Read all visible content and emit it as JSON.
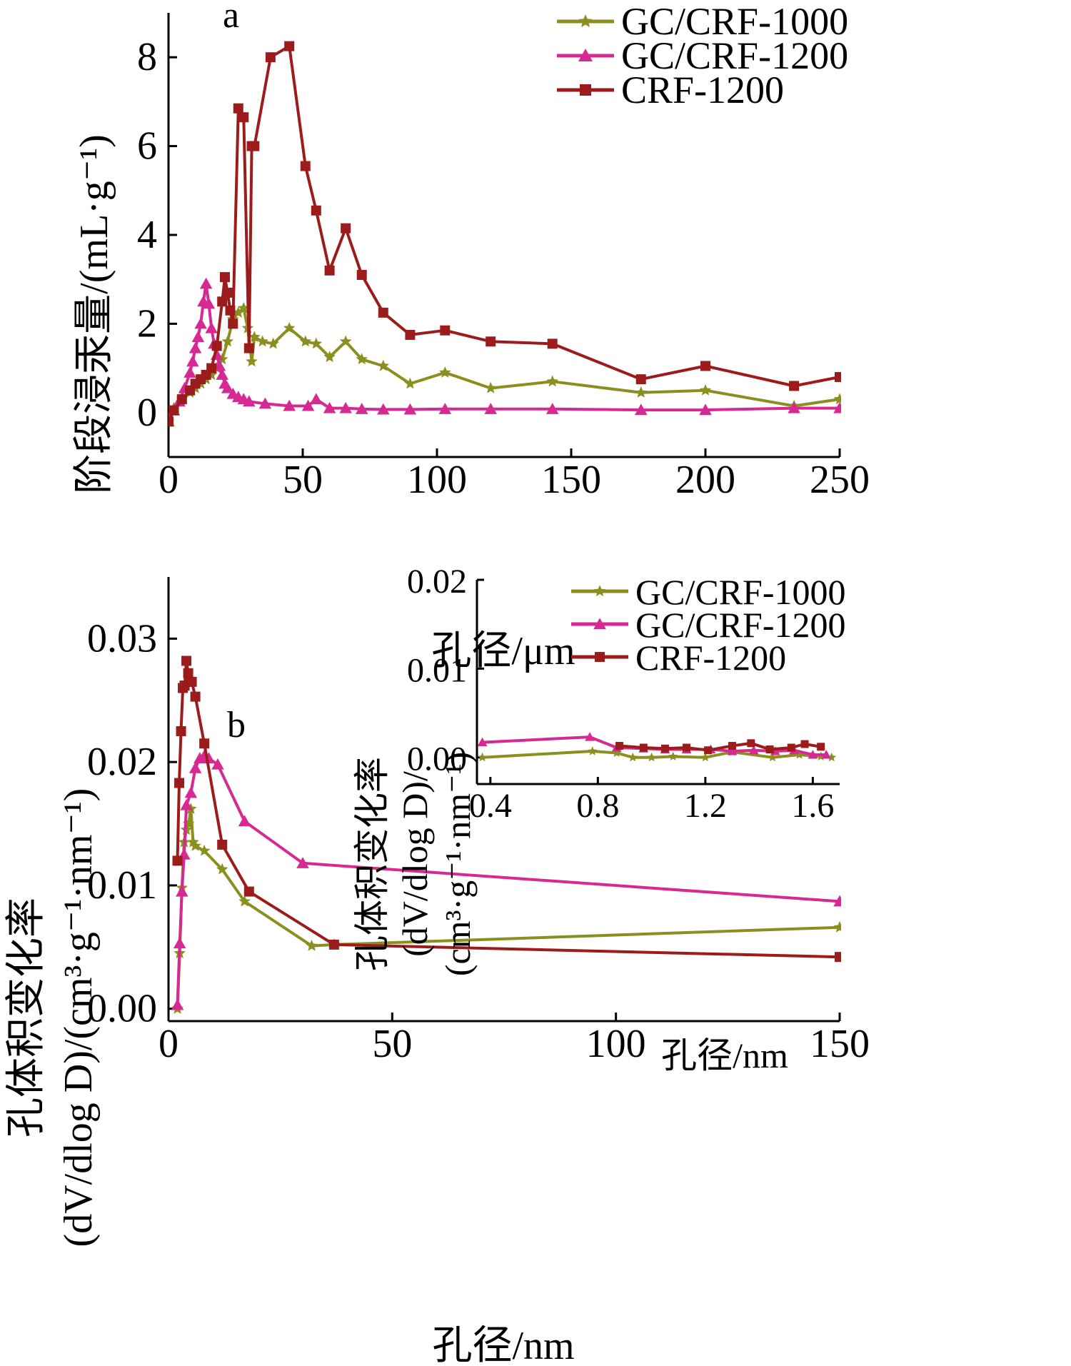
{
  "colors": {
    "GC/CRF-1000": "#8a8f1e",
    "GC/CRF-1200": "#d62a92",
    "CRF-1200": "#9c1c1c",
    "axis": "#000000"
  },
  "chart_data": [
    {
      "type": "line",
      "panel": "a",
      "xlabel": "孔径/μm",
      "ylabel": "阶段浸汞量/(mL·g⁻¹)",
      "xlim": [
        0,
        250
      ],
      "ylim": [
        -1,
        9
      ],
      "xticks": [
        "0",
        "50",
        "100",
        "150",
        "200",
        "250"
      ],
      "yticks": [
        "0",
        "2",
        "4",
        "6",
        "8"
      ],
      "legend_position": "top-right",
      "series": [
        {
          "name": "GC/CRF-1000",
          "marker": "star",
          "x": [
            0,
            2,
            5,
            8,
            10,
            12,
            14,
            16,
            18,
            20,
            22,
            24,
            26,
            28,
            29.5,
            31,
            32,
            35,
            39,
            45,
            51,
            55,
            60,
            66,
            72,
            80,
            90,
            103,
            120,
            143,
            176,
            200,
            233,
            250
          ],
          "y": [
            -0.2,
            0.1,
            0.3,
            0.45,
            0.55,
            0.65,
            0.75,
            0.85,
            1.0,
            1.2,
            1.6,
            2.1,
            2.25,
            2.35,
            1.9,
            1.15,
            1.7,
            1.6,
            1.55,
            1.9,
            1.6,
            1.55,
            1.25,
            1.6,
            1.2,
            1.05,
            0.65,
            0.9,
            0.55,
            0.7,
            0.45,
            0.5,
            0.15,
            0.3
          ]
        },
        {
          "name": "GC/CRF-1200",
          "marker": "triangle",
          "x": [
            0,
            2,
            4,
            6,
            8,
            9,
            10,
            11,
            12,
            13,
            14,
            15,
            16,
            17,
            18,
            19,
            20,
            21,
            22,
            24,
            26,
            28,
            30,
            36,
            45,
            52,
            55,
            60,
            66,
            72,
            80,
            90,
            103,
            120,
            143,
            176,
            200,
            233,
            250
          ],
          "y": [
            -0.2,
            0.05,
            0.25,
            0.55,
            0.9,
            1.15,
            1.45,
            1.7,
            2.0,
            2.5,
            2.9,
            2.45,
            1.9,
            1.55,
            1.3,
            1.05,
            0.85,
            0.65,
            0.55,
            0.42,
            0.35,
            0.3,
            0.25,
            0.2,
            0.15,
            0.15,
            0.3,
            0.1,
            0.1,
            0.08,
            0.07,
            0.07,
            0.08,
            0.08,
            0.08,
            0.06,
            0.06,
            0.1,
            0.1
          ]
        },
        {
          "name": "CRF-1200",
          "marker": "square",
          "x": [
            0,
            2,
            5,
            8,
            10,
            12,
            14,
            16,
            18,
            20,
            21,
            22,
            23,
            24,
            26,
            28,
            30,
            31,
            32,
            38,
            45,
            51,
            55,
            60,
            66,
            72,
            80,
            90,
            103,
            120,
            143,
            176,
            200,
            233,
            250
          ],
          "y": [
            -0.2,
            0.05,
            0.3,
            0.5,
            0.65,
            0.75,
            0.85,
            1.0,
            1.5,
            2.5,
            3.05,
            2.7,
            2.3,
            2.0,
            6.85,
            6.65,
            1.45,
            6.0,
            6.0,
            8.0,
            8.25,
            5.55,
            4.55,
            3.2,
            4.15,
            3.1,
            2.25,
            1.75,
            1.85,
            1.6,
            1.55,
            0.75,
            1.05,
            0.6,
            0.8
          ]
        }
      ]
    },
    {
      "type": "line",
      "panel": "b",
      "xlabel": "孔径/nm",
      "ylabel": [
        "孔体积变化率",
        "(dV/dlog D)/(cm³·g⁻¹·nm⁻¹)"
      ],
      "xlim": [
        0,
        150
      ],
      "ylim": [
        -0.001,
        0.035
      ],
      "xticks": [
        "0",
        "50",
        "100",
        "150"
      ],
      "yticks": [
        "0.00",
        "0.01",
        "0.02",
        "0.03"
      ],
      "legend_position": "top-right (within inset)",
      "series": [
        {
          "name": "GC/CRF-1000",
          "marker": "star",
          "x": [
            2,
            2.5,
            3,
            3.5,
            4,
            4.5,
            5,
            5.5,
            6,
            8,
            12,
            17,
            32,
            37,
            150
          ],
          "y": [
            0.0,
            0.0045,
            0.0098,
            0.0135,
            0.0145,
            0.015,
            0.0162,
            0.0135,
            0.0132,
            0.0128,
            0.0113,
            0.0087,
            0.0051,
            0.0052,
            0.0066
          ]
        },
        {
          "name": "GC/CRF-1200",
          "marker": "triangle",
          "x": [
            2,
            2.5,
            3,
            3.5,
            4,
            5,
            6,
            7,
            8,
            9,
            11,
            17,
            30,
            150
          ],
          "y": [
            0.0003,
            0.0053,
            0.0095,
            0.0125,
            0.0165,
            0.0175,
            0.0195,
            0.0203,
            0.0205,
            0.0203,
            0.0198,
            0.0152,
            0.0118,
            0.0087
          ]
        },
        {
          "name": "CRF-1200",
          "marker": "square",
          "x": [
            2,
            2.4,
            2.8,
            3.2,
            3.6,
            4,
            4.4,
            4.8,
            5.2,
            6,
            8,
            12,
            18,
            37,
            150
          ],
          "y": [
            0.012,
            0.0183,
            0.0225,
            0.026,
            0.0262,
            0.0282,
            0.0272,
            0.0265,
            0.0265,
            0.0253,
            0.0215,
            0.0133,
            0.0095,
            0.0052,
            0.0042
          ]
        }
      ],
      "inset": {
        "xlabel": "孔径/nm",
        "ylabel": [
          "孔体积变化率",
          "(dV/dlog D)/",
          "(cm³·g⁻¹·nm⁻¹)"
        ],
        "xlim": [
          0.35,
          1.7
        ],
        "ylim": [
          -0.003,
          0.02
        ],
        "xticks": [
          "0.4",
          "0.8",
          "1.2",
          "1.6"
        ],
        "yticks": [
          "0.00",
          "0.01",
          "0.02"
        ],
        "series": [
          {
            "name": "GC/CRF-1000",
            "marker": "star",
            "x": [
              0.37,
              0.78,
              0.87,
              0.93,
              1.0,
              1.08,
              1.2,
              1.3,
              1.45,
              1.55,
              1.63,
              1.67
            ],
            "y": [
              0.0,
              0.0007,
              0.0005,
              0.0,
              0.0,
              0.0001,
              0.0,
              0.0006,
              0.0,
              0.0003,
              0.0001,
              0.0
            ]
          },
          {
            "name": "GC/CRF-1200",
            "marker": "triangle",
            "x": [
              0.37,
              0.77,
              0.87,
              0.97,
              1.05,
              1.13,
              1.22,
              1.3,
              1.38,
              1.46,
              1.53,
              1.6,
              1.65
            ],
            "y": [
              0.0017,
              0.0023,
              0.0011,
              0.001,
              0.0009,
              0.0009,
              0.0009,
              0.0007,
              0.0008,
              0.0007,
              0.0008,
              0.0003,
              0.0003
            ]
          },
          {
            "name": "CRF-1200",
            "marker": "square",
            "x": [
              0.88,
              0.97,
              1.05,
              1.13,
              1.21,
              1.3,
              1.37,
              1.44,
              1.52,
              1.57,
              1.63
            ],
            "y": [
              0.0013,
              0.0011,
              0.001,
              0.0011,
              0.0008,
              0.0013,
              0.0016,
              0.0009,
              0.0011,
              0.0015,
              0.0012
            ]
          }
        ]
      }
    }
  ]
}
